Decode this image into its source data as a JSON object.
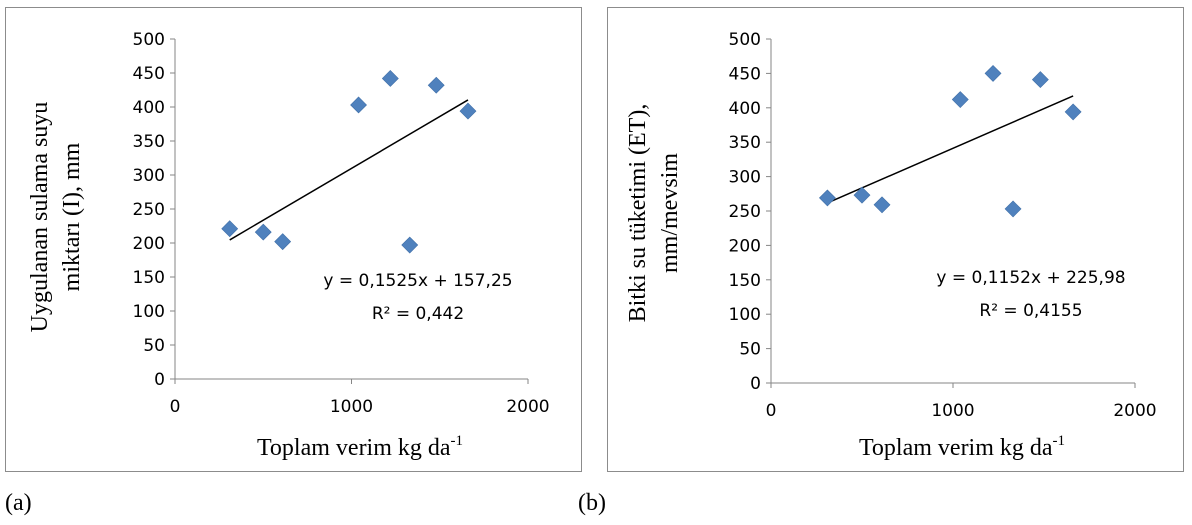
{
  "captions": [
    "(a)",
    "(b)"
  ],
  "chart_data": [
    {
      "type": "scatter",
      "xlim": [
        0,
        2000
      ],
      "ylim": [
        0,
        500
      ],
      "x_ticks": [
        0,
        1000,
        2000
      ],
      "y_ticks": [
        0,
        50,
        100,
        150,
        200,
        250,
        300,
        350,
        400,
        450,
        500
      ],
      "xlabel_main": "Toplam verim kg da",
      "xlabel_sup": "-1",
      "ylabel_lines": [
        "Uygulanan sulama suyu",
        "miktarı (I), mm"
      ],
      "points": [
        {
          "x": 310,
          "y": 221
        },
        {
          "x": 500,
          "y": 216
        },
        {
          "x": 610,
          "y": 202
        },
        {
          "x": 1040,
          "y": 403
        },
        {
          "x": 1220,
          "y": 442
        },
        {
          "x": 1330,
          "y": 197
        },
        {
          "x": 1480,
          "y": 432
        },
        {
          "x": 1660,
          "y": 394
        }
      ],
      "trendline": {
        "slope": 0.1525,
        "intercept": 157.25,
        "x_range": [
          310,
          1660
        ]
      },
      "equation": "y = 0,1525x + 157,25",
      "r_squared": "R² = 0,442",
      "colors": {
        "marker": "#4f81bd",
        "line": "#000000"
      },
      "grid": false
    },
    {
      "type": "scatter",
      "xlim": [
        0,
        2000
      ],
      "ylim": [
        0,
        500
      ],
      "x_ticks": [
        0,
        1000,
        2000
      ],
      "y_ticks": [
        0,
        50,
        100,
        150,
        200,
        250,
        300,
        350,
        400,
        450,
        500
      ],
      "xlabel_main": "Toplam verim kg da",
      "xlabel_sup": "-1",
      "ylabel_lines": [
        "Bitki su tüketimi (ET),",
        "mm/mevsim"
      ],
      "points": [
        {
          "x": 310,
          "y": 269
        },
        {
          "x": 500,
          "y": 273
        },
        {
          "x": 610,
          "y": 259
        },
        {
          "x": 1040,
          "y": 412
        },
        {
          "x": 1220,
          "y": 450
        },
        {
          "x": 1330,
          "y": 253
        },
        {
          "x": 1480,
          "y": 441
        },
        {
          "x": 1660,
          "y": 394
        }
      ],
      "trendline": {
        "slope": 0.1152,
        "intercept": 225.98,
        "x_range": [
          310,
          1660
        ]
      },
      "equation": "y = 0,1152x + 225,98",
      "r_squared": "R² = 0,4155",
      "colors": {
        "marker": "#4f81bd",
        "line": "#000000"
      },
      "grid": false
    }
  ]
}
